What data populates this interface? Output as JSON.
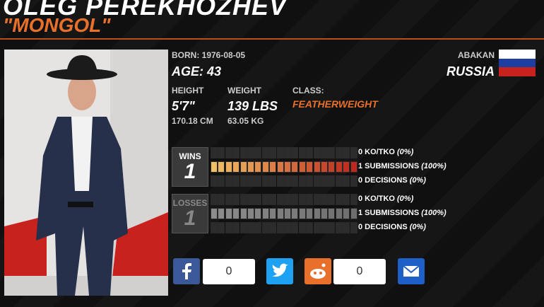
{
  "header": {
    "name": "OLEG PEREKHOZHEV",
    "nickname": "\"MONGOL\""
  },
  "info": {
    "born": "BORN: 1976-08-05",
    "age": "AGE: 43",
    "city": "ABAKAN",
    "country": "RUSSIA",
    "height_label": "HEIGHT",
    "height": "5'7\"",
    "height_cm": "170.18 CM",
    "weight_label": "WEIGHT",
    "weight": "139 LBS",
    "weight_kg": "63.05 KG",
    "class_label": "CLASS:",
    "class": "FEATHERWEIGHT"
  },
  "record": [
    {
      "label": "WINS",
      "total": "1",
      "rows": [
        {
          "count": "0 KO/TKO",
          "percent": "(0%)"
        },
        {
          "count": "1 SUBMISSIONS",
          "percent": "(100%)"
        },
        {
          "count": "0 DECISIONS",
          "percent": "(0%)"
        }
      ]
    },
    {
      "label": "LOSSES",
      "total": "1",
      "rows": [
        {
          "count": "0 KO/TKO",
          "percent": "(0%)"
        },
        {
          "count": "1 SUBMISSIONS",
          "percent": "(100%)"
        },
        {
          "count": "0 DECISIONS",
          "percent": "(0%)"
        }
      ]
    }
  ],
  "share": {
    "facebook_count": "0",
    "reddit_count": "0"
  }
}
